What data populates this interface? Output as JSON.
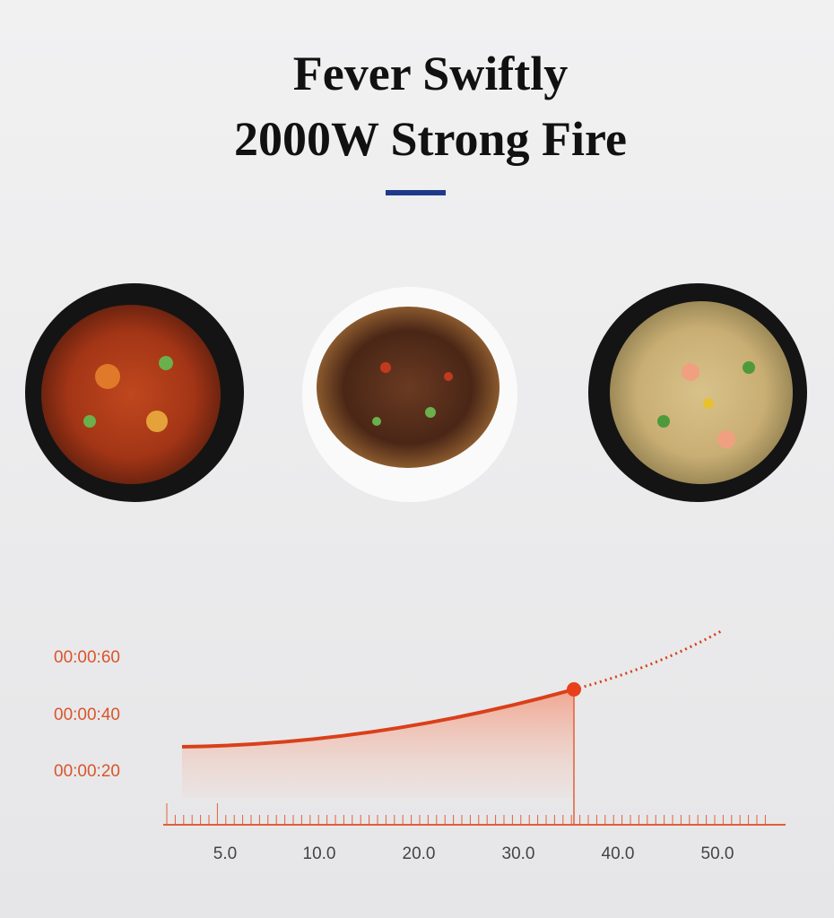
{
  "header": {
    "title_lines": [
      "Fever Swiftly",
      "2000W Strong Fire"
    ]
  },
  "graphic": {
    "y_labels": [
      "00:00:60",
      "00:00:40",
      "00:00:20"
    ],
    "x_labels": [
      "5.0",
      "10.0",
      "20.0",
      "30.0",
      "40.0",
      "50.0"
    ]
  }
}
